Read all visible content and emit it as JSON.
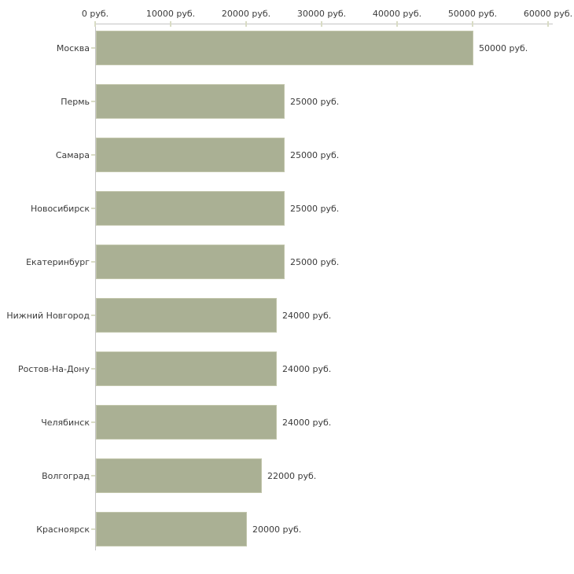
{
  "chart_data": {
    "type": "bar",
    "orientation": "horizontal",
    "title": "",
    "xlabel": "",
    "ylabel": "",
    "unit": "руб.",
    "categories": [
      "Москва",
      "Пермь",
      "Самара",
      "Новосибирск",
      "Екатеринбург",
      "Нижний Новгород",
      "Ростов-На-Дону",
      "Челябинск",
      "Волгоград",
      "Красноярск"
    ],
    "values": [
      50000,
      25000,
      25000,
      25000,
      25000,
      24000,
      24000,
      24000,
      22000,
      20000
    ],
    "value_labels": [
      "50000 руб.",
      "25000 руб.",
      "25000 руб.",
      "25000 руб.",
      "25000 руб.",
      "24000 руб.",
      "24000 руб.",
      "24000 руб.",
      "22000 руб.",
      "20000 руб."
    ],
    "x_ticks": [
      0,
      10000,
      20000,
      30000,
      40000,
      50000,
      60000
    ],
    "x_tick_labels": [
      "0 руб.",
      "10000 руб.",
      "20000 руб.",
      "30000 руб.",
      "40000 руб.",
      "50000 руб.",
      "60000 руб."
    ],
    "xlim": [
      0,
      60000
    ],
    "grid": false,
    "legend": "none",
    "colors": {
      "bar_fill": "#aab094",
      "bar_border": "#c2c6ac",
      "axis_line": "#c3c3c3",
      "tick_mark": "#d9dcc5",
      "text": "#3b3b3b",
      "background": "#ffffff"
    }
  }
}
